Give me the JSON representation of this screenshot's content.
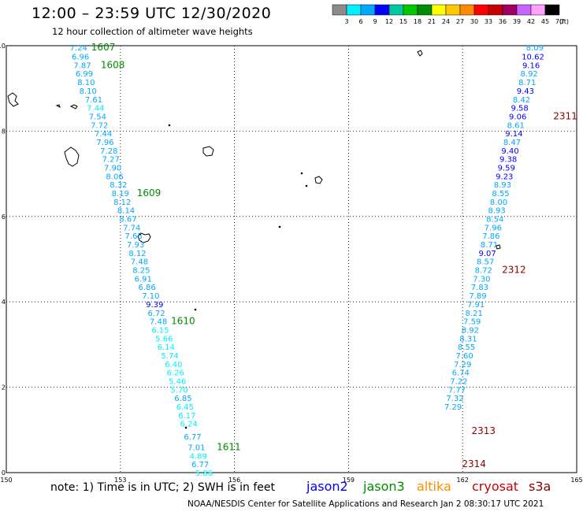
{
  "header": {
    "title": "12:00 – 23:59 UTC 12/30/2020",
    "subtitle": "12 hour collection of altimeter wave heights"
  },
  "colorbar": {
    "labels": [
      "3",
      "6",
      "9",
      "12",
      "15",
      "18",
      "21",
      "24",
      "27",
      "30",
      "33",
      "36",
      "39",
      "42",
      "45",
      "70"
    ],
    "unit": "(ft)",
    "colors": [
      "#8c8c8c",
      "#00f0ff",
      "#00a8ff",
      "#0000ff",
      "#00c8a0",
      "#00c800",
      "#008c00",
      "#ffff00",
      "#ffc800",
      "#ff8c00",
      "#ff0000",
      "#c80000",
      "#a00064",
      "#c864ff",
      "#ffa0ff",
      "#000000"
    ]
  },
  "footer": {
    "note": "note:  1) Time is in UTC;  2) SWH is in feet",
    "satellites": [
      {
        "name": "jason2",
        "color": "#0000ff"
      },
      {
        "name": "jason3",
        "color": "#008c00"
      },
      {
        "name": "altika",
        "color": "#ff8c00"
      },
      {
        "name": "cryosat",
        "color": "#c80000"
      },
      {
        "name": "s3a",
        "color": "#8c0000"
      }
    ],
    "credit": "NOAA/NESDIS Center for Satellite Applications and Research   Jan  2 08:30:17 UTC 2021"
  },
  "chart_data": {
    "type": "scatter",
    "xlim": [
      150,
      165
    ],
    "ylim": [
      0,
      10
    ],
    "xticks": [
      150,
      153,
      156,
      159,
      162,
      165
    ],
    "yticks": [
      0,
      2,
      4,
      6,
      8,
      10
    ],
    "grid": true,
    "series": [
      {
        "name": "left track",
        "points": [
          {
            "x": 151.9,
            "y": 9.96,
            "v": "7.24",
            "c": "#00a8ff"
          },
          {
            "x": 151.95,
            "y": 9.75,
            "v": "6.96",
            "c": "#00a8ff"
          },
          {
            "x": 152.0,
            "y": 9.55,
            "v": "7.87",
            "c": "#00a8ff"
          },
          {
            "x": 152.05,
            "y": 9.35,
            "v": "6.99",
            "c": "#00a8ff"
          },
          {
            "x": 152.1,
            "y": 9.15,
            "v": "8.10",
            "c": "#00a8ff"
          },
          {
            "x": 152.15,
            "y": 8.95,
            "v": "8.10",
            "c": "#00a8ff"
          },
          {
            "x": 152.3,
            "y": 8.75,
            "v": "7.61",
            "c": "#00a8ff"
          },
          {
            "x": 152.35,
            "y": 8.55,
            "v": "7.44",
            "c": "#00f0ff"
          },
          {
            "x": 152.4,
            "y": 8.35,
            "v": "7.54",
            "c": "#00a8ff"
          },
          {
            "x": 152.45,
            "y": 8.15,
            "v": "7.72",
            "c": "#00a8ff"
          },
          {
            "x": 152.55,
            "y": 7.95,
            "v": "7.44",
            "c": "#00a8ff"
          },
          {
            "x": 152.6,
            "y": 7.75,
            "v": "7.96",
            "c": "#00a8ff"
          },
          {
            "x": 152.7,
            "y": 7.55,
            "v": "7.28",
            "c": "#00a8ff"
          },
          {
            "x": 152.75,
            "y": 7.35,
            "v": "7.27",
            "c": "#00a8ff"
          },
          {
            "x": 152.8,
            "y": 7.15,
            "v": "7.90",
            "c": "#00a8ff"
          },
          {
            "x": 152.85,
            "y": 6.95,
            "v": "8.06",
            "c": "#00a8ff"
          },
          {
            "x": 152.95,
            "y": 6.75,
            "v": "8.32",
            "c": "#00a8ff"
          },
          {
            "x": 153.0,
            "y": 6.55,
            "v": "8.19",
            "c": "#00a8ff"
          },
          {
            "x": 153.05,
            "y": 6.35,
            "v": "8.12",
            "c": "#00a8ff"
          },
          {
            "x": 153.15,
            "y": 6.15,
            "v": "8.14",
            "c": "#00a8ff"
          },
          {
            "x": 153.2,
            "y": 5.95,
            "v": "8.67",
            "c": "#00a8ff"
          },
          {
            "x": 153.3,
            "y": 5.75,
            "v": "7.74",
            "c": "#00a8ff"
          },
          {
            "x": 153.35,
            "y": 5.55,
            "v": "7.65",
            "c": "#00a8ff"
          },
          {
            "x": 153.4,
            "y": 5.35,
            "v": "7.93",
            "c": "#00a8ff"
          },
          {
            "x": 153.45,
            "y": 5.15,
            "v": "8.12",
            "c": "#00a8ff"
          },
          {
            "x": 153.5,
            "y": 4.95,
            "v": "7.48",
            "c": "#00a8ff"
          },
          {
            "x": 153.55,
            "y": 4.75,
            "v": "8.25",
            "c": "#00a8ff"
          },
          {
            "x": 153.6,
            "y": 4.55,
            "v": "6.91",
            "c": "#00a8ff"
          },
          {
            "x": 153.7,
            "y": 4.35,
            "v": "6.86",
            "c": "#00a8ff"
          },
          {
            "x": 153.8,
            "y": 4.15,
            "v": "7.10",
            "c": "#00a8ff"
          },
          {
            "x": 153.9,
            "y": 3.95,
            "v": "9.39",
            "c": "#0000ff"
          },
          {
            "x": 153.95,
            "y": 3.75,
            "v": "6.72",
            "c": "#00a8ff"
          },
          {
            "x": 154.0,
            "y": 3.55,
            "v": "7.48",
            "c": "#00a8ff"
          },
          {
            "x": 154.05,
            "y": 3.35,
            "v": "6.15",
            "c": "#00f0ff"
          },
          {
            "x": 154.15,
            "y": 3.15,
            "v": "5.66",
            "c": "#00f0ff"
          },
          {
            "x": 154.2,
            "y": 2.95,
            "v": "6.14",
            "c": "#00f0ff"
          },
          {
            "x": 154.3,
            "y": 2.75,
            "v": "5.74",
            "c": "#00f0ff"
          },
          {
            "x": 154.4,
            "y": 2.55,
            "v": "6.40",
            "c": "#00f0ff"
          },
          {
            "x": 154.45,
            "y": 2.35,
            "v": "6.26",
            "c": "#00f0ff"
          },
          {
            "x": 154.5,
            "y": 2.15,
            "v": "5.46",
            "c": "#00f0ff"
          },
          {
            "x": 154.55,
            "y": 1.95,
            "v": "5.70",
            "c": "#00f0ff"
          },
          {
            "x": 154.65,
            "y": 1.75,
            "v": "6.85",
            "c": "#00a8ff"
          },
          {
            "x": 154.7,
            "y": 1.55,
            "v": "6.45",
            "c": "#00f0ff"
          },
          {
            "x": 154.75,
            "y": 1.35,
            "v": "6.17",
            "c": "#00f0ff"
          },
          {
            "x": 154.8,
            "y": 1.15,
            "v": "6.24",
            "c": "#00f0ff"
          },
          {
            "x": 154.9,
            "y": 0.85,
            "v": "6.77",
            "c": "#00a8ff"
          },
          {
            "x": 155.0,
            "y": 0.6,
            "v": "7.01",
            "c": "#00a8ff"
          },
          {
            "x": 155.05,
            "y": 0.4,
            "v": "4.89",
            "c": "#00f0ff"
          },
          {
            "x": 155.1,
            "y": 0.2,
            "v": "6.77",
            "c": "#00a8ff"
          },
          {
            "x": 155.2,
            "y": 0.0,
            "v": "5.86",
            "c": "#00f0ff"
          }
        ]
      },
      {
        "name": "right track",
        "points": [
          {
            "x": 163.9,
            "y": 9.96,
            "v": "8.09",
            "c": "#00a8ff"
          },
          {
            "x": 163.85,
            "y": 9.75,
            "v": "10.62",
            "c": "#0000ff"
          },
          {
            "x": 163.8,
            "y": 9.55,
            "v": "9.16",
            "c": "#0000ff"
          },
          {
            "x": 163.75,
            "y": 9.35,
            "v": "8.92",
            "c": "#00a8ff"
          },
          {
            "x": 163.7,
            "y": 9.15,
            "v": "8.71",
            "c": "#00a8ff"
          },
          {
            "x": 163.65,
            "y": 8.95,
            "v": "9.43",
            "c": "#0000ff"
          },
          {
            "x": 163.55,
            "y": 8.75,
            "v": "8.42",
            "c": "#00a8ff"
          },
          {
            "x": 163.5,
            "y": 8.55,
            "v": "9.58",
            "c": "#0000ff"
          },
          {
            "x": 163.45,
            "y": 8.35,
            "v": "9.06",
            "c": "#0000ff"
          },
          {
            "x": 163.4,
            "y": 8.15,
            "v": "8.61",
            "c": "#00a8ff"
          },
          {
            "x": 163.35,
            "y": 7.95,
            "v": "9.14",
            "c": "#0000ff"
          },
          {
            "x": 163.3,
            "y": 7.75,
            "v": "8.47",
            "c": "#00a8ff"
          },
          {
            "x": 163.25,
            "y": 7.55,
            "v": "9.40",
            "c": "#0000ff"
          },
          {
            "x": 163.2,
            "y": 7.35,
            "v": "9.38",
            "c": "#0000ff"
          },
          {
            "x": 163.15,
            "y": 7.15,
            "v": "9.59",
            "c": "#0000ff"
          },
          {
            "x": 163.1,
            "y": 6.95,
            "v": "9.23",
            "c": "#0000ff"
          },
          {
            "x": 163.05,
            "y": 6.75,
            "v": "8.93",
            "c": "#00a8ff"
          },
          {
            "x": 163.0,
            "y": 6.55,
            "v": "8.55",
            "c": "#00a8ff"
          },
          {
            "x": 162.95,
            "y": 6.35,
            "v": "8.00",
            "c": "#00a8ff"
          },
          {
            "x": 162.9,
            "y": 6.15,
            "v": "8.93",
            "c": "#00a8ff"
          },
          {
            "x": 162.85,
            "y": 5.95,
            "v": "8.54",
            "c": "#00a8ff"
          },
          {
            "x": 162.8,
            "y": 5.75,
            "v": "7.96",
            "c": "#00a8ff"
          },
          {
            "x": 162.75,
            "y": 5.55,
            "v": "7.86",
            "c": "#00a8ff"
          },
          {
            "x": 162.7,
            "y": 5.35,
            "v": "8.71",
            "c": "#00a8ff"
          },
          {
            "x": 162.65,
            "y": 5.15,
            "v": "9.07",
            "c": "#0000ff"
          },
          {
            "x": 162.6,
            "y": 4.95,
            "v": "8.57",
            "c": "#00a8ff"
          },
          {
            "x": 162.55,
            "y": 4.75,
            "v": "8.72",
            "c": "#00a8ff"
          },
          {
            "x": 162.5,
            "y": 4.55,
            "v": "7.30",
            "c": "#00a8ff"
          },
          {
            "x": 162.45,
            "y": 4.35,
            "v": "7.83",
            "c": "#00a8ff"
          },
          {
            "x": 162.4,
            "y": 4.15,
            "v": "7.89",
            "c": "#00a8ff"
          },
          {
            "x": 162.35,
            "y": 3.95,
            "v": "7.91",
            "c": "#00a8ff"
          },
          {
            "x": 162.3,
            "y": 3.75,
            "v": "8.21",
            "c": "#00a8ff"
          },
          {
            "x": 162.25,
            "y": 3.55,
            "v": "7.59",
            "c": "#00a8ff"
          },
          {
            "x": 162.2,
            "y": 3.35,
            "v": "8.92",
            "c": "#00a8ff"
          },
          {
            "x": 162.15,
            "y": 3.15,
            "v": "8.31",
            "c": "#00a8ff"
          },
          {
            "x": 162.1,
            "y": 2.95,
            "v": "8.55",
            "c": "#00a8ff"
          },
          {
            "x": 162.05,
            "y": 2.75,
            "v": "7.60",
            "c": "#00a8ff"
          },
          {
            "x": 162.0,
            "y": 2.55,
            "v": "7.29",
            "c": "#00a8ff"
          },
          {
            "x": 161.95,
            "y": 2.35,
            "v": "6.74",
            "c": "#00a8ff"
          },
          {
            "x": 161.9,
            "y": 2.15,
            "v": "7.22",
            "c": "#00a8ff"
          },
          {
            "x": 161.85,
            "y": 1.95,
            "v": "7.77",
            "c": "#00a8ff"
          },
          {
            "x": 161.8,
            "y": 1.75,
            "v": "7.32",
            "c": "#00a8ff"
          },
          {
            "x": 161.75,
            "y": 1.55,
            "v": "7.29",
            "c": "#00a8ff"
          }
        ]
      }
    ],
    "time_labels": [
      {
        "text": "1607",
        "x": 152.55,
        "y": 9.96,
        "c": "#008c00"
      },
      {
        "text": "1608",
        "x": 152.8,
        "y": 9.55,
        "c": "#008c00"
      },
      {
        "text": "1609",
        "x": 153.75,
        "y": 6.55,
        "c": "#008c00"
      },
      {
        "text": "1610",
        "x": 154.65,
        "y": 3.55,
        "c": "#008c00"
      },
      {
        "text": "1611",
        "x": 155.85,
        "y": 0.6,
        "c": "#008c00"
      },
      {
        "text": "2311",
        "x": 164.7,
        "y": 8.35,
        "c": "#8c0000"
      },
      {
        "text": "2312",
        "x": 163.35,
        "y": 4.75,
        "c": "#8c0000"
      },
      {
        "text": "2313",
        "x": 162.55,
        "y": 0.98,
        "c": "#8c0000"
      },
      {
        "text": "2314",
        "x": 162.3,
        "y": 0.2,
        "c": "#8c0000"
      }
    ]
  }
}
